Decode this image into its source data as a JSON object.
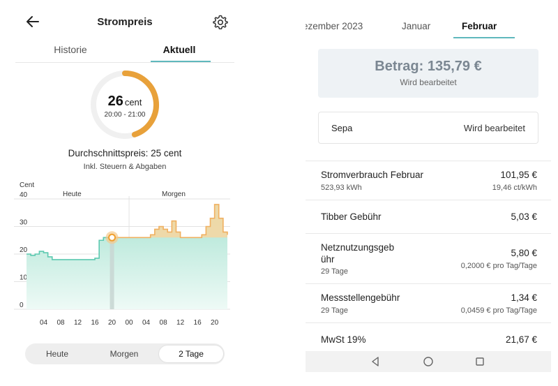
{
  "left": {
    "header": {
      "title": "Strompreis",
      "back_icon": "arrow-left-icon",
      "settings_icon": "gear-icon"
    },
    "tabs": [
      {
        "label": "Historie"
      },
      {
        "label": "Aktuell"
      }
    ],
    "gauge": {
      "value": "26",
      "unit": "cent",
      "time_range": "20:00 - 21:00",
      "progress_fraction": 0.45
    },
    "average": {
      "label": "Durchschnittspreis: 25 cent",
      "sub": "Inkl. Steuern & Abgaben"
    },
    "chart_data": {
      "type": "line",
      "ylabel": "Cent",
      "ylim": [
        0,
        40
      ],
      "yticks": [
        "0",
        "10",
        "20",
        "30",
        "40"
      ],
      "xticks": [
        "04",
        "08",
        "12",
        "16",
        "20",
        "00",
        "04",
        "08",
        "12",
        "16",
        "20"
      ],
      "section_labels": [
        "Heute",
        "Morgen"
      ],
      "x_hours": [
        0,
        1,
        2,
        3,
        4,
        5,
        6,
        7,
        8,
        9,
        10,
        11,
        12,
        13,
        14,
        15,
        16,
        17,
        18,
        19,
        20,
        21,
        22,
        23,
        24,
        25,
        26,
        27,
        28,
        29,
        30,
        31,
        32,
        33,
        34,
        35,
        36,
        37,
        38,
        39,
        40,
        41,
        42,
        43,
        44,
        45,
        46,
        47
      ],
      "values": [
        20,
        19.5,
        20,
        21,
        20.5,
        19,
        18,
        18,
        18,
        18,
        18,
        18,
        18,
        18,
        18,
        18,
        18.5,
        25,
        26,
        26,
        26,
        26,
        26,
        26,
        26,
        26,
        26,
        26,
        26,
        27,
        29,
        30,
        29,
        28,
        32,
        28,
        26,
        26,
        26,
        26,
        26,
        27,
        30,
        33,
        38,
        33,
        28,
        27
      ],
      "current_hour": 20,
      "series_colors": {
        "past": "#5cc9b0",
        "future": "#f0b060",
        "current": "#f0a030"
      }
    },
    "segments": [
      {
        "label": "Heute"
      },
      {
        "label": "Morgen"
      },
      {
        "label": "2 Tage"
      }
    ]
  },
  "right": {
    "month_tabs": [
      {
        "label": "ezember 2023"
      },
      {
        "label": "Januar"
      },
      {
        "label": "Februar"
      }
    ],
    "amount": {
      "label": "Betrag: 135,79 €",
      "status": "Wird bearbeitet"
    },
    "sepa": {
      "label": "Sepa",
      "status": "Wird bearbeitet"
    },
    "items": [
      {
        "label": "Stromverbrauch Februar",
        "sub": "523,93 kWh",
        "amount": "101,95 €",
        "rsub": "19,46 ct/kWh"
      },
      {
        "label": "Tibber Gebühr",
        "sub": "",
        "amount": "5,03 €",
        "rsub": ""
      },
      {
        "label": "Netznutzungsgeb",
        "label2": "ühr",
        "sub": "29 Tage",
        "amount": "5,80 €",
        "rsub": "0,2000 € pro Tag/Tage"
      },
      {
        "label": "Messstellengebühr",
        "sub": "29 Tage",
        "amount": "1,34 €",
        "rsub": "0,0459 € pro Tag/Tage"
      },
      {
        "label": "MwSt 19%",
        "sub": "",
        "amount": "21,67 €",
        "rsub": ""
      }
    ],
    "navbar": {
      "icons": [
        "nav-back-icon",
        "nav-home-icon",
        "nav-recents-icon"
      ]
    }
  }
}
